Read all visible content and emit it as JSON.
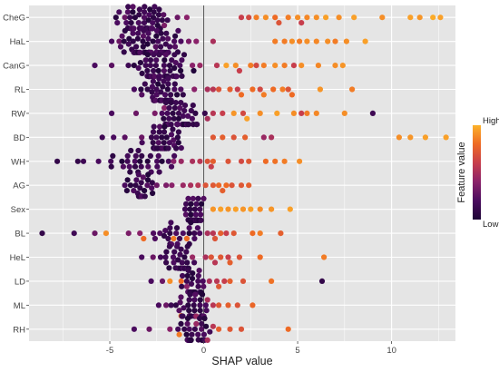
{
  "chart_data": {
    "type": "scatter",
    "subtype": "shap-beeswarm",
    "xlabel": "SHAP value",
    "ylabel": "",
    "xlim": [
      -9.3,
      13.4
    ],
    "x_ticks": [
      -5,
      0,
      5,
      10
    ],
    "x_tick_labels": [
      "-5",
      "0",
      "5",
      "10"
    ],
    "zero_line": true,
    "grid": true,
    "background": "#e5e5e5",
    "legend": {
      "title": "Feature value",
      "high_label": "High",
      "low_label": "Low",
      "placement": "right",
      "colormap": [
        "#1d0436",
        "#4a0b5e",
        "#8a226a",
        "#c73e4c",
        "#ee6a24",
        "#fcb22a"
      ]
    },
    "features": [
      "CheG",
      "HaL",
      "CanG",
      "RL",
      "RW",
      "BD",
      "WH",
      "AG",
      "Sex",
      "BL",
      "HeL",
      "LD",
      "ML",
      "RH"
    ],
    "series": [
      {
        "feature": "CheG",
        "low_cluster": {
          "center": -3.2,
          "spread": 1.2,
          "n": 70
        },
        "high_points": [
          [
            2.8,
            0.85
          ],
          [
            3.3,
            0.9
          ],
          [
            3.8,
            0.8
          ],
          [
            4.5,
            0.85
          ],
          [
            5.0,
            0.9
          ],
          [
            5.5,
            0.88
          ],
          [
            6.0,
            0.9
          ],
          [
            6.5,
            0.95
          ],
          [
            7.2,
            0.9
          ],
          [
            8.0,
            0.95
          ],
          [
            9.5,
            0.9
          ],
          [
            11.0,
            0.95
          ],
          [
            11.5,
            0.92
          ],
          [
            12.2,
            0.98
          ],
          [
            12.6,
            0.95
          ]
        ],
        "mid_points": [
          [
            -4.6,
            0.2
          ],
          [
            -4.2,
            0.3
          ],
          [
            -2.1,
            0.35
          ],
          [
            -1.4,
            0.3
          ],
          [
            -0.9,
            0.4
          ],
          [
            2.0,
            0.6
          ],
          [
            2.4,
            0.65
          ],
          [
            4.0,
            0.7
          ],
          [
            5.2,
            0.6
          ]
        ]
      },
      {
        "feature": "HaL",
        "low_cluster": {
          "center": -2.8,
          "spread": 1.5,
          "n": 70
        },
        "high_points": [
          [
            3.8,
            0.85
          ],
          [
            4.3,
            0.85
          ],
          [
            4.7,
            0.9
          ],
          [
            5.1,
            0.85
          ],
          [
            5.5,
            0.9
          ],
          [
            6.0,
            0.88
          ],
          [
            6.6,
            0.9
          ],
          [
            7.0,
            0.85
          ],
          [
            7.6,
            0.9
          ],
          [
            8.6,
            0.95
          ]
        ],
        "mid_points": [
          [
            -4.9,
            0.2
          ],
          [
            -4.5,
            0.3
          ],
          [
            -0.8,
            0.35
          ],
          [
            -0.4,
            0.4
          ],
          [
            0.5,
            0.5
          ]
        ]
      },
      {
        "feature": "CanG",
        "low_cluster": {
          "center": -2.3,
          "spread": 1.2,
          "n": 60
        },
        "high_points": [
          [
            1.2,
            0.95
          ],
          [
            1.7,
            0.9
          ],
          [
            2.5,
            0.85
          ],
          [
            3.2,
            0.85
          ],
          [
            3.8,
            0.9
          ],
          [
            4.3,
            0.85
          ],
          [
            5.2,
            0.9
          ],
          [
            6.1,
            0.88
          ],
          [
            7.0,
            0.9
          ],
          [
            7.4,
            0.92
          ]
        ],
        "mid_points": [
          [
            -5.8,
            0.2
          ],
          [
            -4.9,
            0.25
          ],
          [
            -0.6,
            0.4
          ],
          [
            -0.2,
            0.45
          ],
          [
            0.7,
            0.55
          ],
          [
            1.9,
            0.6
          ],
          [
            2.8,
            0.65
          ],
          [
            4.8,
            0.6
          ]
        ]
      },
      {
        "feature": "RL",
        "low_cluster": {
          "center": -2.2,
          "spread": 0.9,
          "n": 50
        },
        "high_points": [
          [
            0.8,
            0.7
          ],
          [
            1.4,
            0.75
          ],
          [
            2.0,
            0.8
          ],
          [
            2.6,
            0.8
          ],
          [
            3.2,
            0.85
          ],
          [
            3.7,
            0.8
          ],
          [
            4.2,
            0.85
          ],
          [
            4.7,
            0.8
          ],
          [
            6.2,
            0.92
          ],
          [
            7.9,
            0.85
          ]
        ],
        "mid_points": [
          [
            -3.7,
            0.2
          ],
          [
            -0.5,
            0.4
          ],
          [
            0.2,
            0.5
          ],
          [
            0.5,
            0.55
          ],
          [
            1.8,
            0.6
          ],
          [
            3.0,
            0.65
          ],
          [
            4.5,
            0.7
          ]
        ]
      },
      {
        "feature": "RW",
        "low_cluster": {
          "center": -1.2,
          "spread": 0.9,
          "n": 45
        },
        "high_points": [
          [
            1.6,
            0.92
          ],
          [
            2.3,
            0.95
          ],
          [
            3.0,
            0.9
          ],
          [
            3.9,
            0.95
          ],
          [
            4.8,
            0.9
          ],
          [
            5.5,
            0.85
          ],
          [
            6.0,
            0.88
          ],
          [
            7.5,
            0.9
          ]
        ],
        "mid_points": [
          [
            -4.9,
            0.2
          ],
          [
            -3.6,
            0.3
          ],
          [
            -2.6,
            0.35
          ],
          [
            -2.1,
            0.4
          ],
          [
            0.2,
            0.5
          ],
          [
            0.5,
            0.55
          ],
          [
            1.0,
            0.6
          ],
          [
            2.1,
            0.65
          ],
          [
            5.2,
            0.6
          ],
          [
            9.0,
            0.15
          ]
        ]
      },
      {
        "feature": "BD",
        "low_cluster": {
          "center": -2.2,
          "spread": 0.8,
          "n": 50
        },
        "high_points": [
          [
            0.5,
            0.72
          ],
          [
            1.0,
            0.75
          ],
          [
            1.6,
            0.7
          ],
          [
            2.2,
            0.75
          ],
          [
            10.4,
            0.9
          ],
          [
            11.0,
            0.92
          ],
          [
            11.8,
            0.95
          ],
          [
            12.9,
            0.95
          ]
        ],
        "mid_points": [
          [
            -5.4,
            0.15
          ],
          [
            -4.8,
            0.2
          ],
          [
            -4.2,
            0.25
          ],
          [
            -3.3,
            0.3
          ],
          [
            3.2,
            0.45
          ],
          [
            3.6,
            0.5
          ]
        ]
      },
      {
        "feature": "WH",
        "low_cluster": {
          "center": -3.5,
          "spread": 1.8,
          "n": 30
        },
        "high_points": [
          [
            0.2,
            0.7
          ],
          [
            0.5,
            0.75
          ],
          [
            1.3,
            0.7
          ],
          [
            2.4,
            0.72
          ],
          [
            3.3,
            0.8
          ],
          [
            3.8,
            0.82
          ],
          [
            4.3,
            0.85
          ],
          [
            5.1,
            0.9
          ]
        ],
        "mid_points": [
          [
            -7.8,
            0.1
          ],
          [
            -6.7,
            0.1
          ],
          [
            -6.4,
            0.15
          ],
          [
            -5.6,
            0.2
          ],
          [
            -1.6,
            0.4
          ],
          [
            -1.2,
            0.45
          ],
          [
            -0.6,
            0.5
          ],
          [
            -0.2,
            0.55
          ],
          [
            0.4,
            0.6
          ],
          [
            2.0,
            0.65
          ]
        ]
      },
      {
        "feature": "AG",
        "low_cluster": {
          "center": -3.3,
          "spread": 0.7,
          "n": 25
        },
        "high_points": [
          [
            0.1,
            0.7
          ],
          [
            0.5,
            0.72
          ],
          [
            1.0,
            0.75
          ],
          [
            1.5,
            0.7
          ],
          [
            2.0,
            0.72
          ],
          [
            2.4,
            0.75
          ],
          [
            1.2,
            0.8
          ],
          [
            0.8,
            0.78
          ]
        ],
        "mid_points": [
          [
            -4.2,
            0.2
          ],
          [
            -2.5,
            0.3
          ],
          [
            -2.0,
            0.35
          ],
          [
            -1.7,
            0.4
          ],
          [
            -1.1,
            0.45
          ],
          [
            -0.7,
            0.5
          ],
          [
            -0.3,
            0.55
          ]
        ]
      },
      {
        "feature": "Sex",
        "low_cluster": {
          "center": -0.5,
          "spread": 0.45,
          "n": 45
        },
        "high_points": [
          [
            0.5,
            0.92
          ],
          [
            0.9,
            0.95
          ],
          [
            1.3,
            0.92
          ],
          [
            1.7,
            0.95
          ],
          [
            2.1,
            0.92
          ],
          [
            2.5,
            0.95
          ],
          [
            3.0,
            0.9
          ],
          [
            3.6,
            0.92
          ],
          [
            4.6,
            0.95
          ]
        ],
        "mid_points": []
      },
      {
        "feature": "BL",
        "low_cluster": {
          "center": -1.5,
          "spread": 1.2,
          "n": 25
        },
        "high_points": [
          [
            -5.2,
            0.9
          ],
          [
            -3.2,
            0.8
          ],
          [
            -1.6,
            0.85
          ],
          [
            -0.9,
            0.8
          ],
          [
            0.6,
            0.7
          ],
          [
            0.9,
            0.75
          ],
          [
            1.6,
            0.72
          ],
          [
            2.6,
            0.8
          ],
          [
            3.0,
            0.85
          ],
          [
            4.1,
            0.75
          ]
        ],
        "mid_points": [
          [
            -8.6,
            0.1
          ],
          [
            -6.9,
            0.15
          ],
          [
            -5.8,
            0.3
          ],
          [
            -4.0,
            0.35
          ],
          [
            -3.4,
            0.4
          ],
          [
            0.2,
            0.5
          ],
          [
            0.5,
            0.55
          ],
          [
            1.2,
            0.6
          ]
        ]
      },
      {
        "feature": "HeL",
        "low_cluster": {
          "center": -1.3,
          "spread": 0.9,
          "n": 30
        },
        "high_points": [
          [
            0.4,
            0.7
          ],
          [
            0.9,
            0.72
          ],
          [
            1.4,
            0.75
          ],
          [
            1.9,
            0.7
          ],
          [
            3.0,
            0.8
          ],
          [
            6.4,
            0.85
          ]
        ],
        "mid_points": [
          [
            -3.3,
            0.2
          ],
          [
            -2.7,
            0.3
          ],
          [
            -0.6,
            0.45
          ],
          [
            0.1,
            0.5
          ],
          [
            0.6,
            0.55
          ],
          [
            1.3,
            0.6
          ]
        ]
      },
      {
        "feature": "LD",
        "low_cluster": {
          "center": -0.5,
          "spread": 0.7,
          "n": 25
        },
        "high_points": [
          [
            -1.8,
            0.9
          ],
          [
            -1.2,
            0.8
          ],
          [
            0.8,
            0.72
          ],
          [
            1.4,
            0.75
          ],
          [
            2.1,
            0.7
          ],
          [
            3.6,
            0.82
          ]
        ],
        "mid_points": [
          [
            -2.8,
            0.2
          ],
          [
            -2.2,
            0.3
          ],
          [
            -0.9,
            0.4
          ],
          [
            0.3,
            0.5
          ],
          [
            0.7,
            0.55
          ],
          [
            1.1,
            0.6
          ],
          [
            6.3,
            0.1
          ]
        ]
      },
      {
        "feature": "ML",
        "low_cluster": {
          "center": -0.7,
          "spread": 0.8,
          "n": 30
        },
        "high_points": [
          [
            -1.2,
            0.85
          ],
          [
            0.8,
            0.72
          ],
          [
            1.3,
            0.75
          ],
          [
            1.8,
            0.7
          ],
          [
            2.6,
            0.78
          ]
        ],
        "mid_points": [
          [
            -2.4,
            0.2
          ],
          [
            -2.0,
            0.3
          ],
          [
            -0.4,
            0.45
          ],
          [
            0.2,
            0.5
          ],
          [
            0.5,
            0.55
          ]
        ]
      },
      {
        "feature": "RH",
        "low_cluster": {
          "center": -0.6,
          "spread": 0.8,
          "n": 30
        },
        "high_points": [
          [
            -1.3,
            0.85
          ],
          [
            0.8,
            0.75
          ],
          [
            1.4,
            0.72
          ],
          [
            2.0,
            0.7
          ],
          [
            4.5,
            0.8
          ]
        ],
        "mid_points": [
          [
            -3.7,
            0.2
          ],
          [
            -2.9,
            0.3
          ],
          [
            -1.8,
            0.4
          ],
          [
            -0.4,
            0.45
          ],
          [
            0.2,
            0.5
          ],
          [
            0.5,
            0.55
          ]
        ]
      }
    ]
  }
}
